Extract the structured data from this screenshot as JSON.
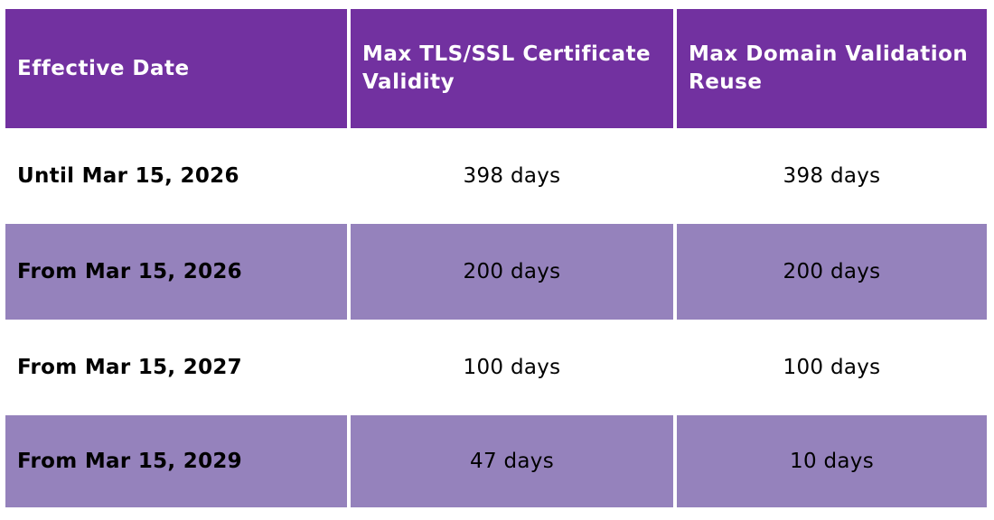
{
  "table": {
    "headers": [
      "Effective Date",
      "Max TLS/SSL Certificate Validity",
      "Max Domain Validation Reuse"
    ],
    "rows": [
      [
        "Until Mar 15, 2026",
        "398 days",
        "398 days"
      ],
      [
        "From Mar 15, 2026",
        "200 days",
        "200 days"
      ],
      [
        "From Mar 15, 2027",
        "100 days",
        "100 days"
      ],
      [
        "From Mar 15, 2029",
        "47 days",
        "10 days"
      ]
    ]
  },
  "colors": {
    "header_bg": "#7231a0",
    "shaded_row_bg": "#9582bc",
    "plain_row_bg": "#ffffff"
  }
}
